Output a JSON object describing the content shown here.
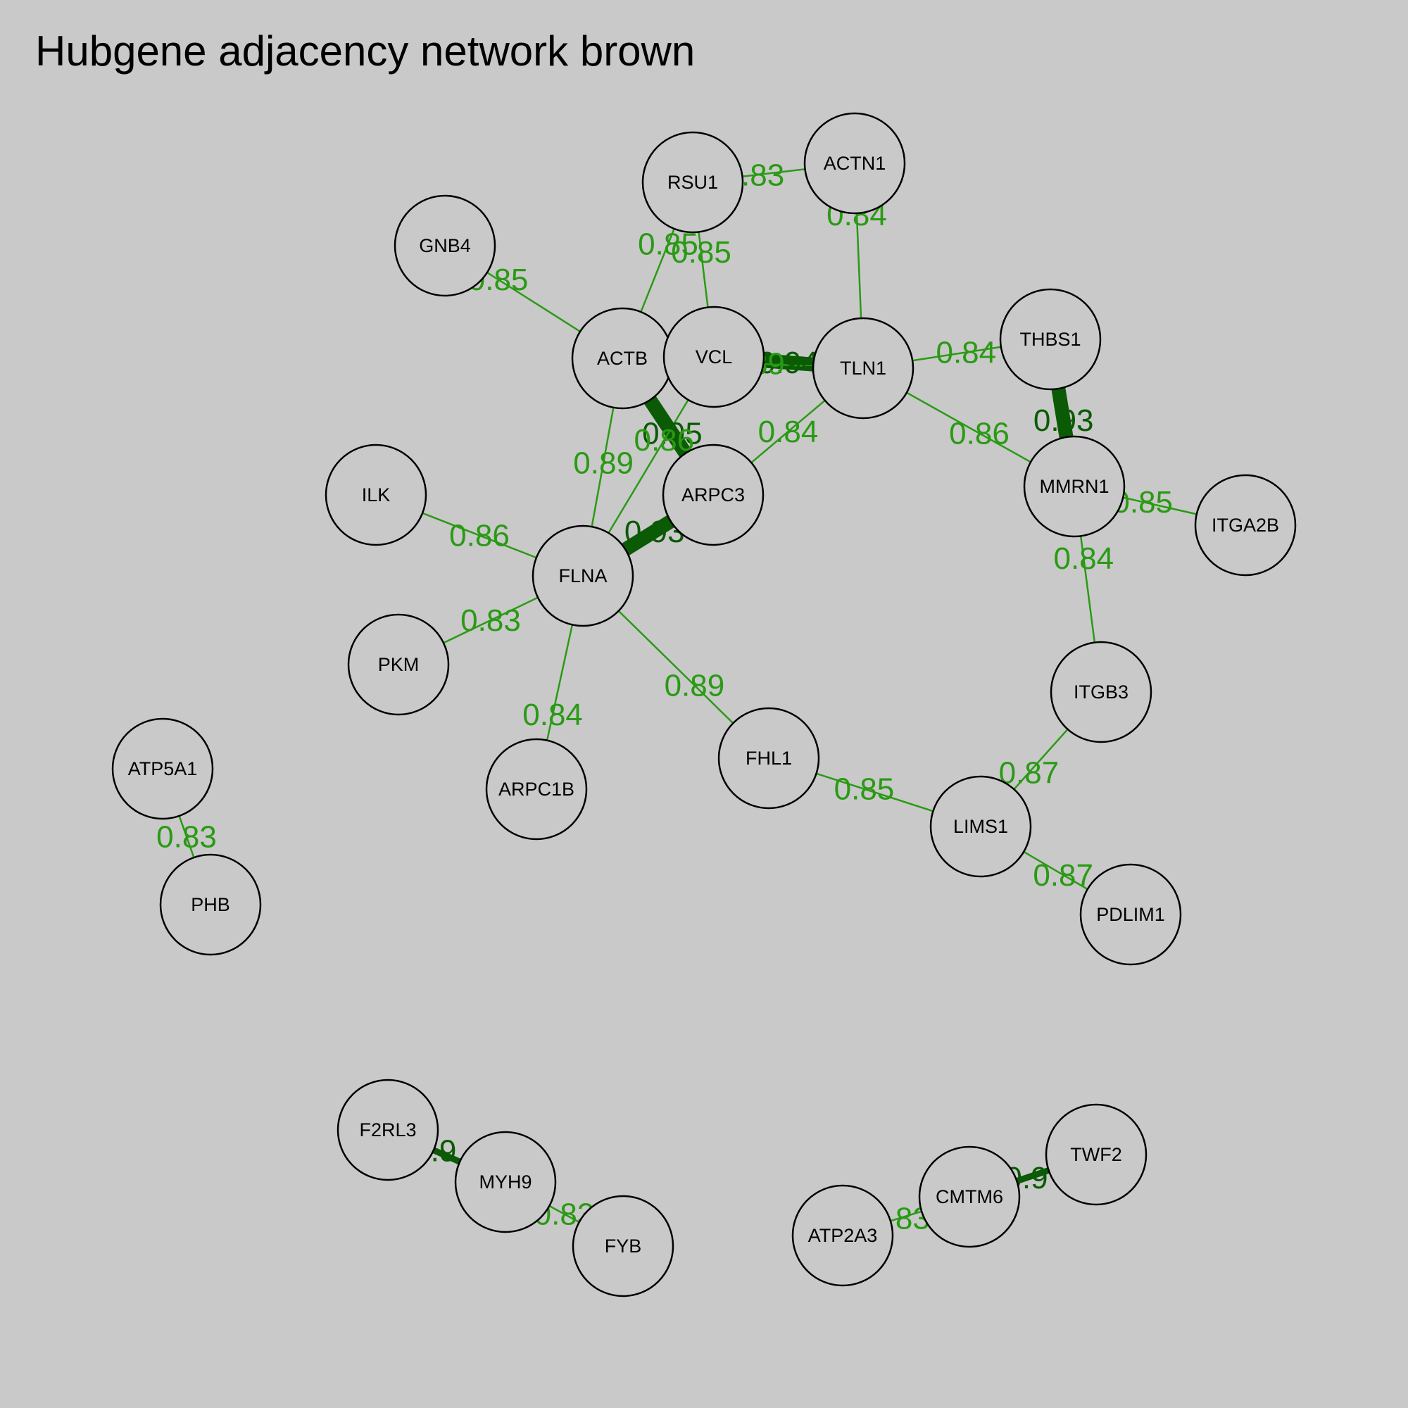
{
  "title": "Hubgene adjacency network brown",
  "colors": {
    "edge_light": "#2a9a14",
    "edge_dark": "#0b5a05",
    "background": "#c9c9c9",
    "node_fill": "#c9c9c9",
    "node_stroke": "#000000"
  },
  "nodes": [
    {
      "id": "ACTN1"
    },
    {
      "id": "RSU1"
    },
    {
      "id": "GNB4"
    },
    {
      "id": "ACTB"
    },
    {
      "id": "VCL"
    },
    {
      "id": "TLN1"
    },
    {
      "id": "THBS1"
    },
    {
      "id": "MMRN1"
    },
    {
      "id": "ITGA2B"
    },
    {
      "id": "ILK"
    },
    {
      "id": "ARPC3"
    },
    {
      "id": "FLNA"
    },
    {
      "id": "PKM"
    },
    {
      "id": "ITGB3"
    },
    {
      "id": "ARPC1B"
    },
    {
      "id": "FHL1"
    },
    {
      "id": "LIMS1"
    },
    {
      "id": "PDLIM1"
    },
    {
      "id": "ATP5A1"
    },
    {
      "id": "PHB"
    },
    {
      "id": "F2RL3"
    },
    {
      "id": "MYH9"
    },
    {
      "id": "FYB"
    },
    {
      "id": "TWF2"
    },
    {
      "id": "CMTM6"
    },
    {
      "id": "ATP2A3"
    }
  ],
  "edges": [
    {
      "source": "RSU1",
      "target": "ACTN1",
      "weight": "0.83"
    },
    {
      "source": "ACTN1",
      "target": "TLN1",
      "weight": "0.84"
    },
    {
      "source": "GNB4",
      "target": "ACTB",
      "weight": "0.85"
    },
    {
      "source": "RSU1",
      "target": "ACTB",
      "weight": "0.85"
    },
    {
      "source": "RSU1",
      "target": "VCL",
      "weight": "0.85"
    },
    {
      "source": "VCL",
      "target": "TLN1",
      "weight": "0.94"
    },
    {
      "source": "ACTB",
      "target": "TLN1",
      "weight": "0.89"
    },
    {
      "source": "TLN1",
      "target": "THBS1",
      "weight": "0.84"
    },
    {
      "source": "THBS1",
      "target": "MMRN1",
      "weight": "0.93"
    },
    {
      "source": "TLN1",
      "target": "MMRN1",
      "weight": "0.86"
    },
    {
      "source": "MMRN1",
      "target": "ITGA2B",
      "weight": "0.85"
    },
    {
      "source": "MMRN1",
      "target": "ITGB3",
      "weight": "0.84"
    },
    {
      "source": "ACTB",
      "target": "ARPC3",
      "weight": "0.95"
    },
    {
      "source": "VCL",
      "target": "FLNA",
      "weight": "0.86"
    },
    {
      "source": "TLN1",
      "target": "ARPC3",
      "weight": "0.84"
    },
    {
      "source": "ACTB",
      "target": "FLNA",
      "weight": "0.89"
    },
    {
      "source": "FLNA",
      "target": "ARPC3",
      "weight": "0.93"
    },
    {
      "source": "ILK",
      "target": "FLNA",
      "weight": "0.86"
    },
    {
      "source": "PKM",
      "target": "FLNA",
      "weight": "0.83"
    },
    {
      "source": "FLNA",
      "target": "ARPC1B",
      "weight": "0.84"
    },
    {
      "source": "FLNA",
      "target": "FHL1",
      "weight": "0.89"
    },
    {
      "source": "FHL1",
      "target": "LIMS1",
      "weight": "0.85"
    },
    {
      "source": "ITGB3",
      "target": "LIMS1",
      "weight": "0.87"
    },
    {
      "source": "LIMS1",
      "target": "PDLIM1",
      "weight": "0.87"
    },
    {
      "source": "ATP5A1",
      "target": "PHB",
      "weight": "0.83"
    },
    {
      "source": "F2RL3",
      "target": "MYH9",
      "weight": "0.9"
    },
    {
      "source": "MYH9",
      "target": "FYB",
      "weight": "0.83"
    },
    {
      "source": "ATP2A3",
      "target": "CMTM6",
      "weight": "0.83"
    },
    {
      "source": "CMTM6",
      "target": "TWF2",
      "weight": "0.9"
    }
  ]
}
